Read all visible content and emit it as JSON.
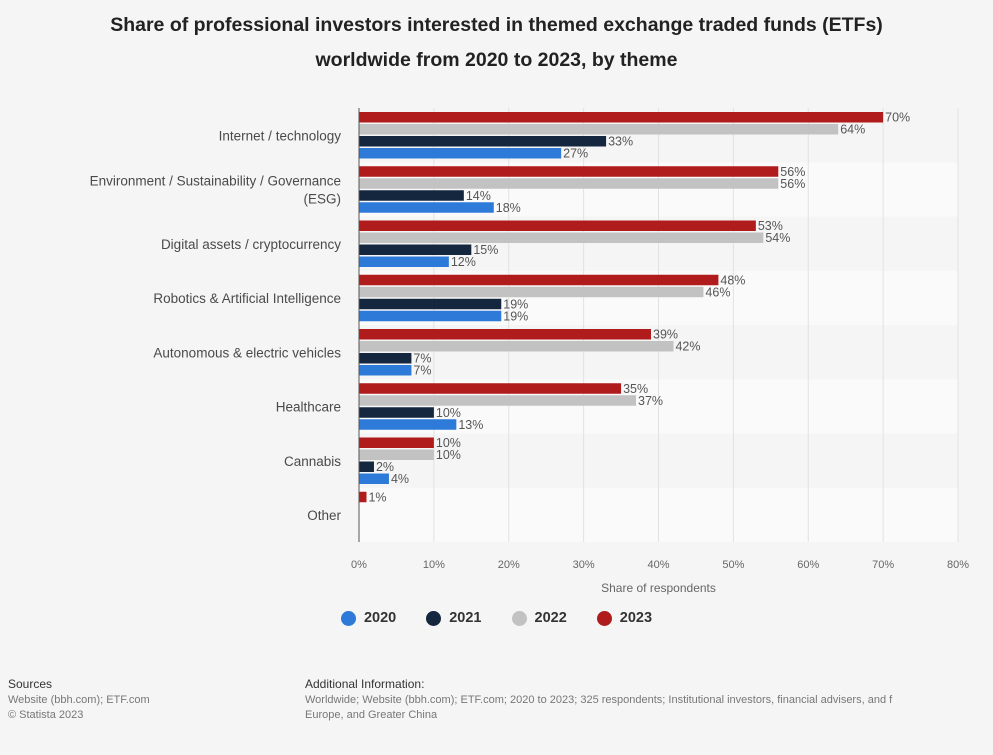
{
  "title_lines": [
    "Share of professional investors interested in themed exchange traded funds (ETFs)",
    "worldwide from 2020 to 2023, by theme"
  ],
  "chart_data": {
    "type": "bar",
    "orientation": "horizontal",
    "title": "Share of professional investors interested in themed exchange traded funds (ETFs) worldwide from 2020 to 2023, by theme",
    "xlabel": "Share of respondents",
    "ylabel": "",
    "xlim": [
      0,
      80
    ],
    "x_ticks": [
      "0%",
      "10%",
      "20%",
      "30%",
      "40%",
      "50%",
      "60%",
      "70%",
      "80%"
    ],
    "grid": true,
    "legend_position": "bottom",
    "categories": [
      [
        "Internet / technology"
      ],
      [
        "Environment / Sustainability / Governance",
        "(ESG)"
      ],
      [
        "Digital assets / cryptocurrency"
      ],
      [
        "Robotics & Artificial Intelligence"
      ],
      [
        "Autonomous & electric vehicles"
      ],
      [
        "Healthcare"
      ],
      [
        "Cannabis"
      ],
      [
        "Other"
      ]
    ],
    "series": [
      {
        "name": "2023",
        "color": "#b01b1b",
        "values": [
          70,
          56,
          53,
          48,
          39,
          35,
          10,
          1
        ],
        "labels": [
          "70%",
          "56%",
          "53%",
          "48%",
          "39%",
          "35%",
          "10%",
          "1%"
        ]
      },
      {
        "name": "2022",
        "color": "#c2c2c2",
        "values": [
          64,
          56,
          54,
          46,
          42,
          37,
          10,
          null
        ],
        "labels": [
          "64%",
          "56%",
          "54%",
          "46%",
          "42%",
          "37%",
          "10%",
          ""
        ]
      },
      {
        "name": "2021",
        "color": "#15263f",
        "values": [
          33,
          14,
          15,
          19,
          7,
          10,
          2,
          null
        ],
        "labels": [
          "33%",
          "14%",
          "15%",
          "19%",
          "7%",
          "10%",
          "2%",
          ""
        ]
      },
      {
        "name": "2020",
        "color": "#2e7ad8",
        "values": [
          27,
          18,
          12,
          19,
          7,
          13,
          4,
          null
        ],
        "labels": [
          "27%",
          "18%",
          "12%",
          "19%",
          "7%",
          "13%",
          "4%",
          ""
        ]
      }
    ]
  },
  "legend": [
    {
      "name": "2020",
      "color": "#2e7ad8"
    },
    {
      "name": "2021",
      "color": "#15263f"
    },
    {
      "name": "2022",
      "color": "#c2c2c2"
    },
    {
      "name": "2023",
      "color": "#b01b1b"
    }
  ],
  "footer": {
    "sources_heading": "Sources",
    "sources_lines": [
      "Website (bbh.com); ETF.com",
      "© Statista 2023"
    ],
    "additional_heading": "Additional Information:",
    "additional_lines": [
      "Worldwide; Website (bbh.com); ETF.com; 2020 to 2023; 325 respondents; Institutional investors, financial advisers, and f",
      "Europe, and Greater China"
    ]
  }
}
